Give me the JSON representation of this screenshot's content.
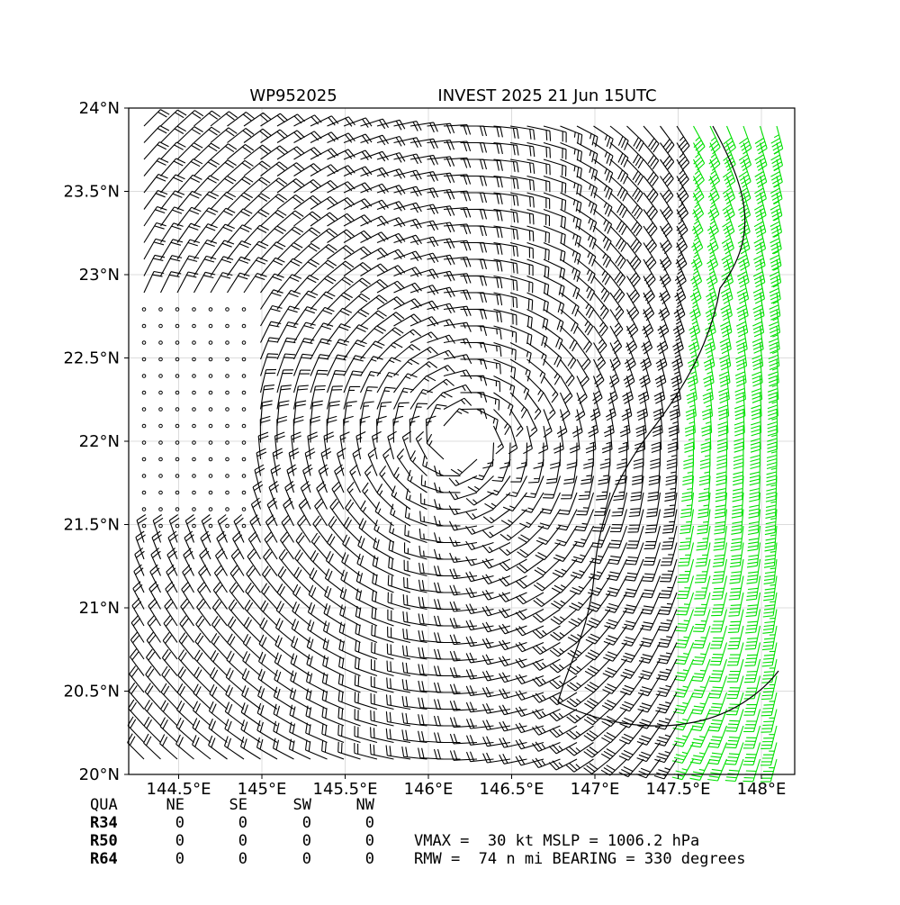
{
  "chart_data": {
    "type": "barb-map",
    "title_left": "WP952025",
    "title_right": "INVEST 2025 21 Jun 15UTC",
    "xlim": [
      144.2,
      148.2
    ],
    "ylim": [
      20,
      24
    ],
    "xticks": [
      {
        "value": 144.5,
        "label": "144.5°E"
      },
      {
        "value": 145,
        "label": "145°E"
      },
      {
        "value": 145.5,
        "label": "145.5°E"
      },
      {
        "value": 146,
        "label": "146°E"
      },
      {
        "value": 146.5,
        "label": "146.5°E"
      },
      {
        "value": 147,
        "label": "147°E"
      },
      {
        "value": 147.5,
        "label": "147.5°E"
      },
      {
        "value": 148,
        "label": "148°E"
      }
    ],
    "yticks": [
      {
        "value": 20,
        "label": "20°N"
      },
      {
        "value": 20.5,
        "label": "20.5°N"
      },
      {
        "value": 21,
        "label": "21°N"
      },
      {
        "value": 21.5,
        "label": "21.5°N"
      },
      {
        "value": 22,
        "label": "22°N"
      },
      {
        "value": 22.5,
        "label": "22.5°N"
      },
      {
        "value": 23,
        "label": "23°N"
      },
      {
        "value": 23.5,
        "label": "23.5°N"
      },
      {
        "value": 24,
        "label": "24°N"
      }
    ],
    "grid": true
  },
  "table": {
    "header": [
      "QUA",
      "NE",
      "SE",
      "SW",
      "NW"
    ],
    "rows": [
      [
        "R34",
        0,
        0,
        0,
        0
      ],
      [
        "R50",
        0,
        0,
        0,
        0
      ],
      [
        "R64",
        0,
        0,
        0,
        0
      ]
    ]
  },
  "summary": [
    "VMAX =  30 kt MSLP = 1006.2 hPa",
    "RMW =  74 n mi BEARING = 330 degrees"
  ]
}
